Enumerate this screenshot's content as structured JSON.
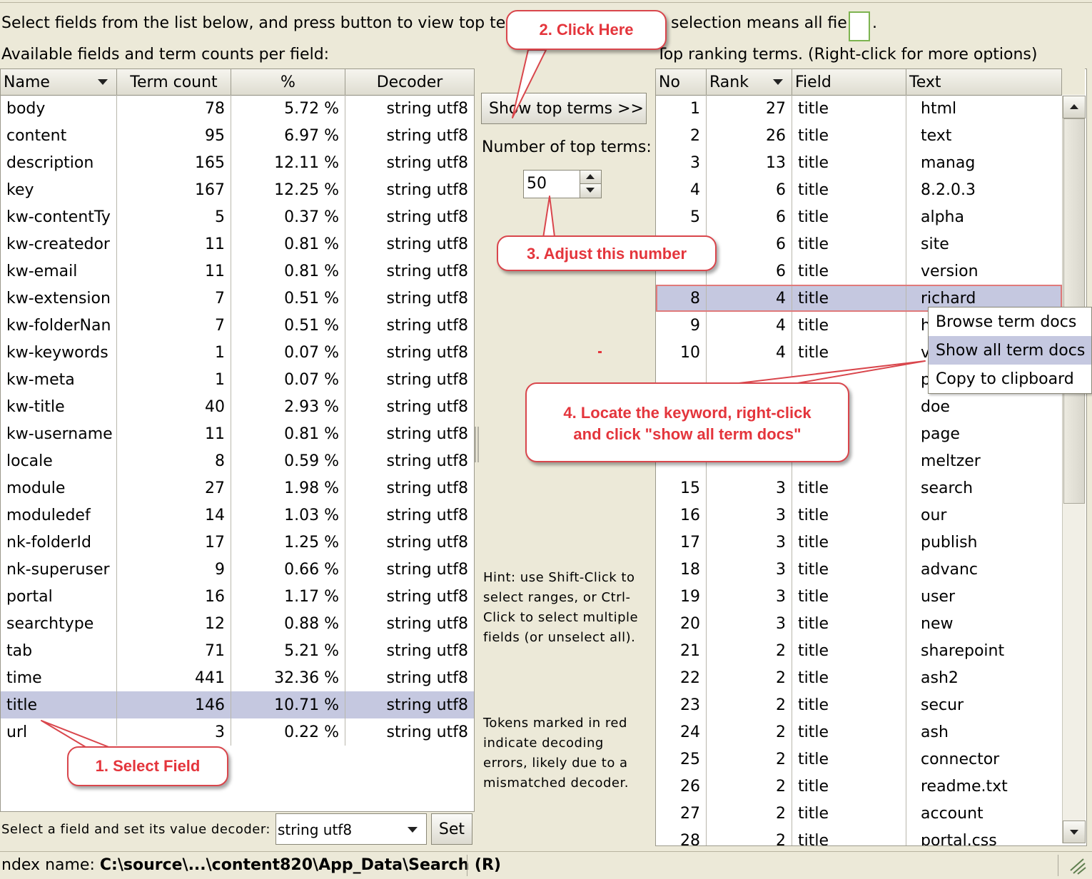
{
  "header": {
    "instruction_left": "Select fields from the list below, and press button to view top term",
    "instruction_right": "selection means all fie",
    "available_label": "Available fields and term counts per field:",
    "top_terms_label": "Top ranking terms. (Right-click for more options)"
  },
  "fields_table": {
    "columns": [
      "Name",
      "Term count",
      "%",
      "Decoder"
    ],
    "rows": [
      {
        "name": "body",
        "count": "78",
        "pct": "5.72 %",
        "decoder": "string utf8"
      },
      {
        "name": "content",
        "count": "95",
        "pct": "6.97 %",
        "decoder": "string utf8"
      },
      {
        "name": "description",
        "count": "165",
        "pct": "12.11 %",
        "decoder": "string utf8"
      },
      {
        "name": "key",
        "count": "167",
        "pct": "12.25 %",
        "decoder": "string utf8"
      },
      {
        "name": "kw-contentTy",
        "count": "5",
        "pct": "0.37 %",
        "decoder": "string utf8"
      },
      {
        "name": "kw-createdor",
        "count": "11",
        "pct": "0.81 %",
        "decoder": "string utf8"
      },
      {
        "name": "kw-email",
        "count": "11",
        "pct": "0.81 %",
        "decoder": "string utf8"
      },
      {
        "name": "kw-extension",
        "count": "7",
        "pct": "0.51 %",
        "decoder": "string utf8"
      },
      {
        "name": "kw-folderNan",
        "count": "7",
        "pct": "0.51 %",
        "decoder": "string utf8"
      },
      {
        "name": "kw-keywords",
        "count": "1",
        "pct": "0.07 %",
        "decoder": "string utf8"
      },
      {
        "name": "kw-meta",
        "count": "1",
        "pct": "0.07 %",
        "decoder": "string utf8"
      },
      {
        "name": "kw-title",
        "count": "40",
        "pct": "2.93 %",
        "decoder": "string utf8"
      },
      {
        "name": "kw-username",
        "count": "11",
        "pct": "0.81 %",
        "decoder": "string utf8"
      },
      {
        "name": "locale",
        "count": "8",
        "pct": "0.59 %",
        "decoder": "string utf8"
      },
      {
        "name": "module",
        "count": "27",
        "pct": "1.98 %",
        "decoder": "string utf8"
      },
      {
        "name": "moduledef",
        "count": "14",
        "pct": "1.03 %",
        "decoder": "string utf8"
      },
      {
        "name": "nk-folderId",
        "count": "17",
        "pct": "1.25 %",
        "decoder": "string utf8"
      },
      {
        "name": "nk-superuser",
        "count": "9",
        "pct": "0.66 %",
        "decoder": "string utf8"
      },
      {
        "name": "portal",
        "count": "16",
        "pct": "1.17 %",
        "decoder": "string utf8"
      },
      {
        "name": "searchtype",
        "count": "12",
        "pct": "0.88 %",
        "decoder": "string utf8"
      },
      {
        "name": "tab",
        "count": "71",
        "pct": "5.21 %",
        "decoder": "string utf8"
      },
      {
        "name": "time",
        "count": "441",
        "pct": "32.36 %",
        "decoder": "string utf8"
      },
      {
        "name": "title",
        "count": "146",
        "pct": "10.71 %",
        "decoder": "string utf8",
        "selected": true
      },
      {
        "name": "url",
        "count": "3",
        "pct": "0.22 %",
        "decoder": "string utf8"
      }
    ]
  },
  "controls": {
    "show_button": "Show top terms >>",
    "number_label": "Number of top terms:",
    "number_value": "50",
    "hint": "Hint: use Shift-Click to select ranges, or Ctrl-Click to select multiple fields (or unselect all).",
    "tokens_note": "Tokens marked in red indicate decoding errors, likely due to a mismatched decoder."
  },
  "terms_table": {
    "columns": [
      "No",
      "Rank",
      "Field",
      "Text"
    ],
    "rows": [
      {
        "no": "1",
        "rank": "27",
        "field": "title",
        "text": "html"
      },
      {
        "no": "2",
        "rank": "26",
        "field": "title",
        "text": "text"
      },
      {
        "no": "3",
        "rank": "13",
        "field": "title",
        "text": "manag"
      },
      {
        "no": "4",
        "rank": "6",
        "field": "title",
        "text": "8.2.0.3"
      },
      {
        "no": "5",
        "rank": "6",
        "field": "title",
        "text": "alpha"
      },
      {
        "no": "",
        "rank": "6",
        "field": "title",
        "text": "site"
      },
      {
        "no": "",
        "rank": "6",
        "field": "title",
        "text": "version"
      },
      {
        "no": "8",
        "rank": "4",
        "field": "title",
        "text": "richard",
        "selected": true
      },
      {
        "no": "9",
        "rank": "4",
        "field": "title",
        "text": "h"
      },
      {
        "no": "10",
        "rank": "4",
        "field": "title",
        "text": "v"
      },
      {
        "no": "",
        "rank": "",
        "field": "",
        "text": "p"
      },
      {
        "no": "",
        "rank": "",
        "field": "",
        "text": "doe"
      },
      {
        "no": "",
        "rank": "",
        "field": "",
        "text": "page"
      },
      {
        "no": "",
        "rank": "",
        "field": "",
        "text": "meltzer"
      },
      {
        "no": "15",
        "rank": "3",
        "field": "title",
        "text": "search"
      },
      {
        "no": "16",
        "rank": "3",
        "field": "title",
        "text": "our"
      },
      {
        "no": "17",
        "rank": "3",
        "field": "title",
        "text": "publish"
      },
      {
        "no": "18",
        "rank": "3",
        "field": "title",
        "text": "advanc"
      },
      {
        "no": "19",
        "rank": "3",
        "field": "title",
        "text": "user"
      },
      {
        "no": "20",
        "rank": "3",
        "field": "title",
        "text": "new"
      },
      {
        "no": "21",
        "rank": "2",
        "field": "title",
        "text": "sharepoint"
      },
      {
        "no": "22",
        "rank": "2",
        "field": "title",
        "text": "ash2"
      },
      {
        "no": "23",
        "rank": "2",
        "field": "title",
        "text": "secur"
      },
      {
        "no": "24",
        "rank": "2",
        "field": "title",
        "text": "ash"
      },
      {
        "no": "25",
        "rank": "2",
        "field": "title",
        "text": "connector"
      },
      {
        "no": "26",
        "rank": "2",
        "field": "title",
        "text": "readme.txt"
      },
      {
        "no": "27",
        "rank": "2",
        "field": "title",
        "text": "account"
      },
      {
        "no": "28",
        "rank": "2",
        "field": "title",
        "text": "portal.css"
      }
    ]
  },
  "context_menu": {
    "items": [
      "Browse term docs",
      "Show all term docs",
      "Copy to clipboard"
    ]
  },
  "bottom": {
    "decoder_label": "Select a field and set its value decoder:",
    "decoder_value": "string utf8",
    "set_button": "Set",
    "index_prefix": "ndex name: ",
    "index_path": "C:\\source\\...\\content820\\App_Data\\Search (R)"
  },
  "callouts": {
    "step1": "1. Select Field",
    "step2": "2. Click Here",
    "step3": "3. Adjust this number",
    "step4_line1": "4. Locate the keyword, right-click",
    "step4_line2": "and click \"show all term docs\""
  },
  "colors": {
    "background": "#ece9d8",
    "selection": "#c5c8e0",
    "callout_red": "#e4353c"
  }
}
